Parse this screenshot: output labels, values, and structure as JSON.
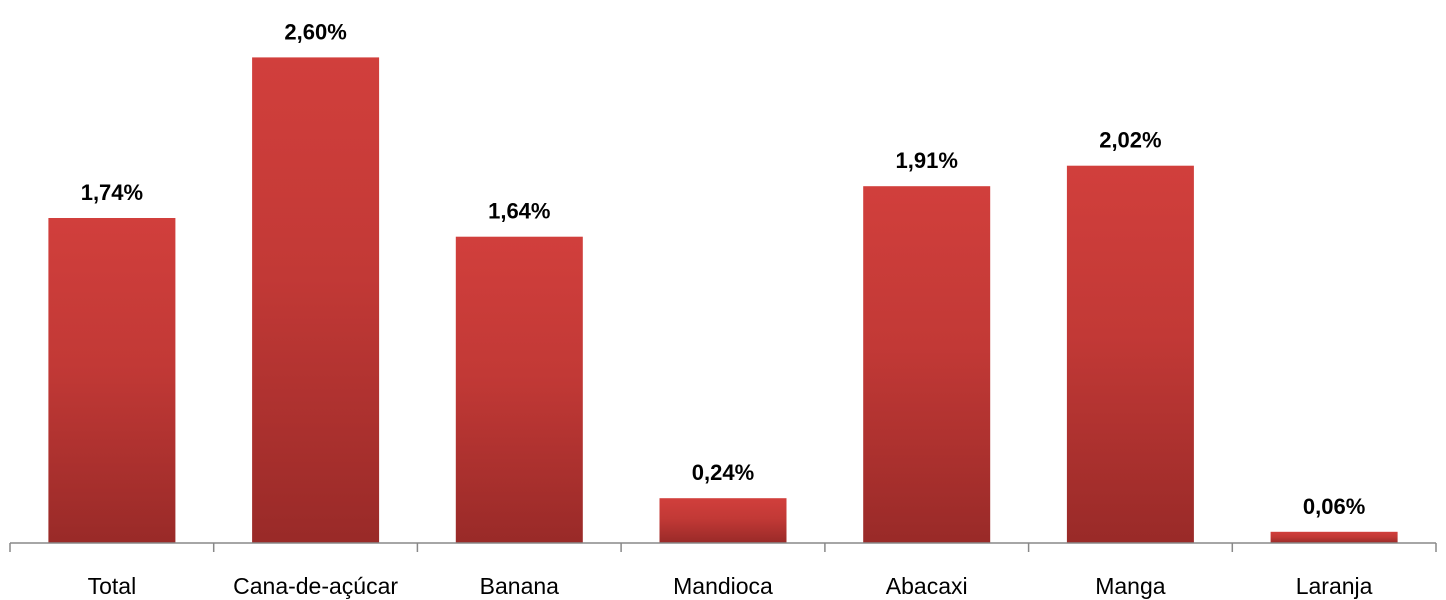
{
  "chart_data": {
    "type": "bar",
    "title": "",
    "xlabel": "",
    "ylabel": "",
    "categories": [
      "Total",
      "Cana-de-açúcar",
      "Banana",
      "Mandioca",
      "Abacaxi",
      "Manga",
      "Laranja"
    ],
    "values": [
      1.74,
      2.6,
      1.64,
      0.24,
      1.91,
      2.02,
      0.06
    ],
    "value_labels": [
      "1,74%",
      "2,60%",
      "1,64%",
      "0,24%",
      "1,91%",
      "2,02%",
      "0,06%"
    ],
    "ylim": [
      0,
      2.8
    ],
    "grid": false,
    "legend": "none",
    "colors": {
      "bar_top": "#d13f3c",
      "bar_bottom": "#992a28",
      "axis": "#888888"
    }
  }
}
